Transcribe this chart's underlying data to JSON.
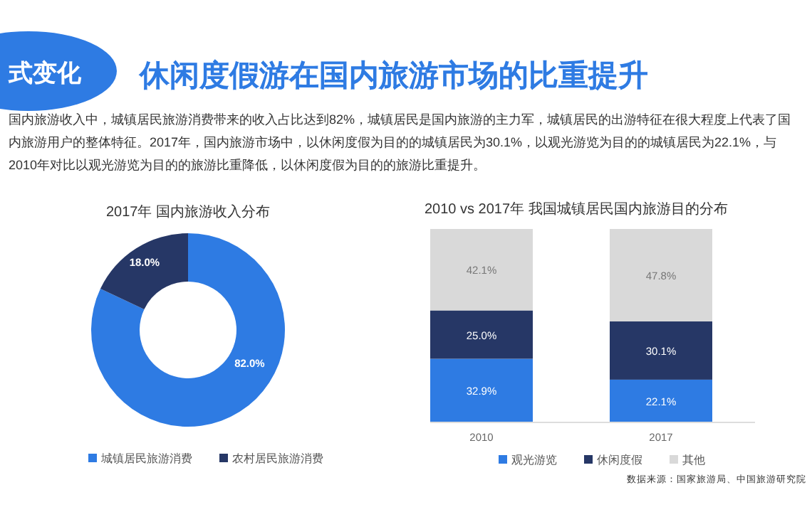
{
  "chart_data": [
    {
      "type": "other",
      "title": "休闲度假游在国内旅游市场的比重提升",
      "annotations": [
        "式变化",
        "国内旅游收入中，城镇居民旅游消费带来的收入占比达到82%，城镇居民是国内旅游的主力军，城镇居民的出游特征在很大程度上代表了国内旅游用户的整体特征。2017年，国内旅游市场中，以休闲度假为目的的城镇居民为30.1%，以观光游览为目的的城镇居民为22.1%，与2010年对比以观光游览为目的的旅游比重降低，以休闲度假为目的的旅游比重提升。"
      ]
    },
    {
      "type": "donut",
      "title": "2017年 国内旅游收入分布",
      "categories": [
        "城镇居民旅游消费",
        "农村居民旅游消费"
      ],
      "values": [
        82.0,
        18.0
      ],
      "colors": [
        "#2e7be3",
        "#263766"
      ],
      "value_labels": [
        "82.0%",
        "18.0%"
      ],
      "legend": "bottom"
    },
    {
      "type": "bar",
      "title": "2010 vs 2017年 我国城镇居民国内旅游目的分布",
      "categories": [
        "2010",
        "2017"
      ],
      "stacked": true,
      "ylim": [
        0,
        100
      ],
      "tick_labels": "x",
      "legend": "bottom",
      "series": [
        {
          "name": "观光游览",
          "color": "#2e7be3",
          "values": [
            32.9,
            22.1
          ],
          "value_labels": [
            "32.9%",
            "22.1%"
          ]
        },
        {
          "name": "休闲度假",
          "color": "#263766",
          "values": [
            25.0,
            30.1
          ],
          "value_labels": [
            "25.0%",
            "30.1%"
          ]
        },
        {
          "name": "其他",
          "color": "#d9d9d9",
          "values": [
            42.1,
            47.8
          ],
          "value_labels": [
            "42.1%",
            "47.8%"
          ]
        }
      ],
      "annotations": [
        "数据来源：国家旅游局、中国旅游研究院"
      ]
    }
  ]
}
